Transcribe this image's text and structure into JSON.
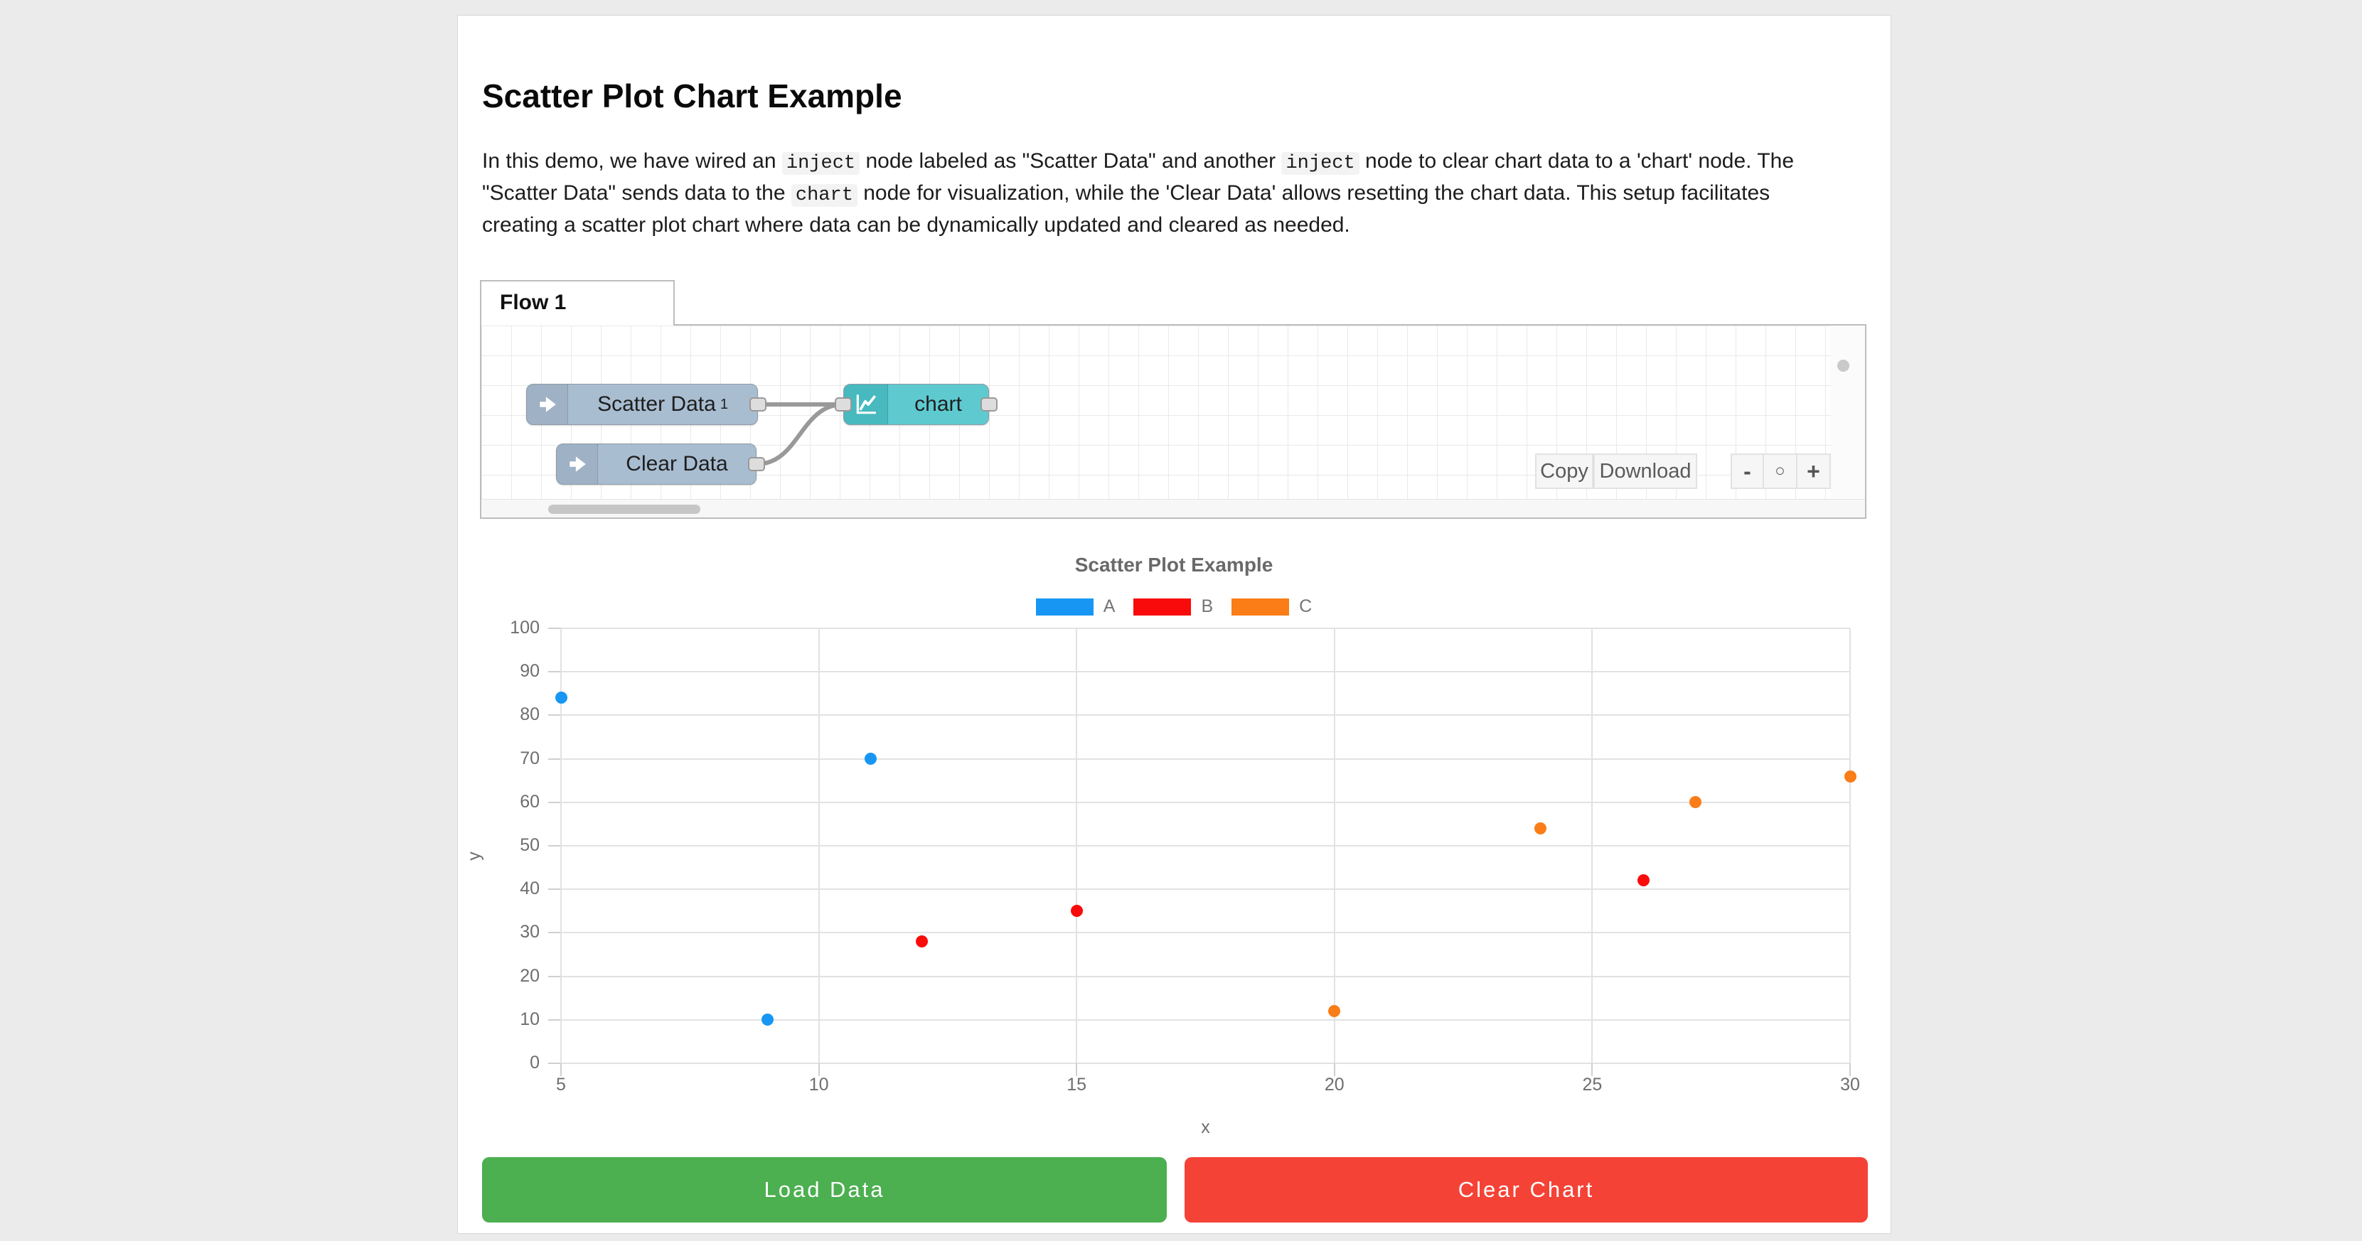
{
  "page": {
    "title": "Scatter Plot Chart Example",
    "description_segments": [
      {
        "t": "text",
        "v": "In this demo, we have wired an "
      },
      {
        "t": "code",
        "v": "inject"
      },
      {
        "t": "text",
        "v": " node labeled as \"Scatter Data\" and another "
      },
      {
        "t": "code",
        "v": "inject"
      },
      {
        "t": "text",
        "v": " node to clear chart data to a 'chart' node. The \"Scatter Data\" sends data to the "
      },
      {
        "t": "code",
        "v": "chart"
      },
      {
        "t": "text",
        "v": " node for visualization, while the 'Clear Data' allows resetting the chart data. This setup facilitates creating a scatter plot chart where data can be dynamically updated and cleared as needed."
      }
    ]
  },
  "flow_editor": {
    "tab_label": "Flow 1",
    "nodes": [
      {
        "id": "scatter-data",
        "label": "Scatter Data",
        "sup": "1",
        "type": "inject",
        "color": "#a9bdd1"
      },
      {
        "id": "clear-data",
        "label": "Clear Data",
        "sup": "",
        "type": "inject",
        "color": "#a9bdd1"
      },
      {
        "id": "chart",
        "label": "chart",
        "sup": "",
        "type": "chart",
        "color": "#5ecad0",
        "icon_color": "#47b9bf"
      }
    ],
    "wires": [
      {
        "from": "scatter-data",
        "to": "chart"
      },
      {
        "from": "clear-data",
        "to": "chart"
      }
    ],
    "controls": {
      "copy_label": "Copy",
      "download_label": "Download",
      "zoom_out_label": "-",
      "zoom_reset_label": "○",
      "zoom_in_label": "+"
    }
  },
  "chart_data": {
    "type": "scatter",
    "title": "Scatter Plot Example",
    "xlabel": "x",
    "ylabel": "y",
    "xlim": [
      5,
      30
    ],
    "ylim": [
      0,
      100
    ],
    "x_ticks": [
      5,
      10,
      15,
      20,
      25,
      30
    ],
    "y_ticks": [
      0,
      10,
      20,
      30,
      40,
      50,
      60,
      70,
      80,
      90,
      100
    ],
    "grid": true,
    "legend_position": "top",
    "series": [
      {
        "name": "A",
        "color": "#1797f3",
        "points": [
          [
            5,
            84
          ],
          [
            9,
            10
          ],
          [
            11,
            70
          ]
        ]
      },
      {
        "name": "B",
        "color": "#f90b0b",
        "points": [
          [
            12,
            28
          ],
          [
            15,
            35
          ],
          [
            26,
            42
          ]
        ]
      },
      {
        "name": "C",
        "color": "#fa7d17",
        "points": [
          [
            20,
            12
          ],
          [
            24,
            54
          ],
          [
            27,
            60
          ],
          [
            30,
            66
          ]
        ]
      }
    ]
  },
  "actions": {
    "load_label": "Load Data",
    "load_color": "#4caf50",
    "clear_label": "Clear Chart",
    "clear_color": "#f44336"
  }
}
